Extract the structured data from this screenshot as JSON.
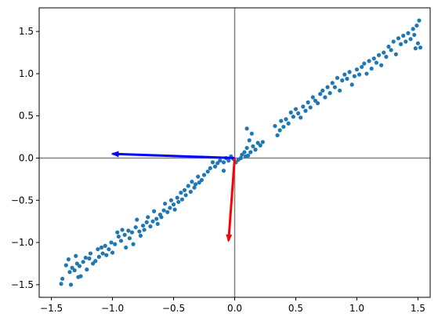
{
  "chart_data": {
    "type": "scatter",
    "title": "",
    "xlabel": "",
    "ylabel": "",
    "xlim": [
      -1.6,
      1.6
    ],
    "ylim": [
      -1.65,
      1.78
    ],
    "grid": false,
    "x_ticks": [
      -1.5,
      -1.0,
      -0.5,
      0.0,
      0.5,
      1.0,
      1.5
    ],
    "x_tick_labels": [
      "−1.5",
      "−1.0",
      "−0.5",
      "0.0",
      "0.5",
      "1.0",
      "1.5"
    ],
    "y_ticks": [
      -1.5,
      -1.0,
      -0.5,
      0.0,
      0.5,
      1.0,
      1.5
    ],
    "y_tick_labels": [
      "−1.5",
      "−1.0",
      "−0.5",
      "0.0",
      "0.5",
      "1.0",
      "1.5"
    ],
    "reference_lines": [
      {
        "orientation": "horizontal",
        "value": 0,
        "color": "#808080"
      },
      {
        "orientation": "vertical",
        "value": 0,
        "color": "#808080"
      }
    ],
    "arrows": [
      {
        "from": [
          0,
          0
        ],
        "to": [
          -1.0,
          0.05
        ],
        "color": "#0000ff"
      },
      {
        "from": [
          0,
          0
        ],
        "to": [
          -0.05,
          -0.98
        ],
        "color": "#ff0000"
      }
    ],
    "series": [
      {
        "color": "#1f77b4",
        "points": [
          [
            -1.42,
            -1.49
          ],
          [
            -1.41,
            -1.43
          ],
          [
            -1.38,
            -1.27
          ],
          [
            -1.36,
            -1.2
          ],
          [
            -1.35,
            -1.35
          ],
          [
            -1.34,
            -1.5
          ],
          [
            -1.33,
            -1.3
          ],
          [
            -1.31,
            -1.33
          ],
          [
            -1.3,
            -1.16
          ],
          [
            -1.29,
            -1.25
          ],
          [
            -1.28,
            -1.41
          ],
          [
            -1.27,
            -1.28
          ],
          [
            -1.26,
            -1.4
          ],
          [
            -1.24,
            -1.23
          ],
          [
            -1.22,
            -1.18
          ],
          [
            -1.21,
            -1.32
          ],
          [
            -1.19,
            -1.19
          ],
          [
            -1.18,
            -1.13
          ],
          [
            -1.16,
            -1.25
          ],
          [
            -1.14,
            -1.22
          ],
          [
            -1.12,
            -1.08
          ],
          [
            -1.11,
            -1.17
          ],
          [
            -1.09,
            -1.06
          ],
          [
            -1.08,
            -1.13
          ],
          [
            -1.06,
            -1.04
          ],
          [
            -1.05,
            -1.15
          ],
          [
            -1.03,
            -1.08
          ],
          [
            -1.01,
            -1.0
          ],
          [
            -1.0,
            -1.12
          ],
          [
            -0.98,
            -1.02
          ],
          [
            -0.96,
            -0.88
          ],
          [
            -0.95,
            -0.93
          ],
          [
            -0.93,
            -0.98
          ],
          [
            -0.92,
            -0.85
          ],
          [
            -0.9,
            -0.91
          ],
          [
            -0.89,
            -1.06
          ],
          [
            -0.87,
            -0.86
          ],
          [
            -0.86,
            -0.95
          ],
          [
            -0.84,
            -0.88
          ],
          [
            -0.83,
            -1.02
          ],
          [
            -0.81,
            -0.82
          ],
          [
            -0.8,
            -0.73
          ],
          [
            -0.78,
            -0.87
          ],
          [
            -0.77,
            -0.92
          ],
          [
            -0.75,
            -0.8
          ],
          [
            -0.74,
            -0.85
          ],
          [
            -0.72,
            -0.76
          ],
          [
            -0.71,
            -0.7
          ],
          [
            -0.69,
            -0.81
          ],
          [
            -0.67,
            -0.75
          ],
          [
            -0.66,
            -0.63
          ],
          [
            -0.64,
            -0.72
          ],
          [
            -0.63,
            -0.78
          ],
          [
            -0.61,
            -0.67
          ],
          [
            -0.6,
            -0.7
          ],
          [
            -0.58,
            -0.62
          ],
          [
            -0.57,
            -0.54
          ],
          [
            -0.55,
            -0.64
          ],
          [
            -0.53,
            -0.59
          ],
          [
            -0.52,
            -0.5
          ],
          [
            -0.5,
            -0.55
          ],
          [
            -0.49,
            -0.61
          ],
          [
            -0.47,
            -0.47
          ],
          [
            -0.46,
            -0.52
          ],
          [
            -0.44,
            -0.41
          ],
          [
            -0.43,
            -0.49
          ],
          [
            -0.41,
            -0.38
          ],
          [
            -0.4,
            -0.44
          ],
          [
            -0.38,
            -0.33
          ],
          [
            -0.36,
            -0.4
          ],
          [
            -0.35,
            -0.28
          ],
          [
            -0.33,
            -0.35
          ],
          [
            -0.32,
            -0.31
          ],
          [
            -0.3,
            -0.22
          ],
          [
            -0.29,
            -0.29
          ],
          [
            -0.27,
            -0.26
          ],
          [
            -0.25,
            -0.2
          ],
          [
            -0.22,
            -0.16
          ],
          [
            -0.2,
            -0.12
          ],
          [
            -0.18,
            -0.05
          ],
          [
            -0.16,
            -0.1
          ],
          [
            -0.14,
            -0.06
          ],
          [
            -0.12,
            -0.03
          ],
          [
            -0.09,
            -0.05
          ],
          [
            -0.07,
            0.0
          ],
          [
            -0.05,
            -0.03
          ],
          [
            -0.03,
            0.02
          ],
          [
            -0.01,
            -0.01
          ],
          [
            0.01,
            -0.05
          ],
          [
            0.03,
            -0.02
          ],
          [
            0.05,
            0.0
          ],
          [
            0.06,
            0.04
          ],
          [
            0.08,
            0.07
          ],
          [
            0.09,
            0.02
          ],
          [
            0.1,
            0.12
          ],
          [
            0.1,
            0.35
          ],
          [
            0.11,
            0.03
          ],
          [
            0.12,
            0.21
          ],
          [
            0.13,
            0.07
          ],
          [
            0.14,
            0.29
          ],
          [
            0.15,
            0.14
          ],
          [
            0.17,
            0.1
          ],
          [
            0.19,
            0.18
          ],
          [
            0.21,
            0.15
          ],
          [
            0.23,
            0.19
          ],
          [
            0.33,
            0.38
          ],
          [
            0.35,
            0.27
          ],
          [
            0.37,
            0.33
          ],
          [
            0.38,
            0.44
          ],
          [
            0.4,
            0.37
          ],
          [
            0.42,
            0.46
          ],
          [
            0.44,
            0.41
          ],
          [
            0.46,
            0.54
          ],
          [
            0.48,
            0.49
          ],
          [
            0.5,
            0.58
          ],
          [
            0.52,
            0.53
          ],
          [
            0.54,
            0.48
          ],
          [
            0.56,
            0.61
          ],
          [
            0.58,
            0.56
          ],
          [
            0.6,
            0.66
          ],
          [
            0.62,
            0.6
          ],
          [
            0.64,
            0.72
          ],
          [
            0.66,
            0.68
          ],
          [
            0.68,
            0.65
          ],
          [
            0.7,
            0.76
          ],
          [
            0.72,
            0.8
          ],
          [
            0.74,
            0.72
          ],
          [
            0.76,
            0.84
          ],
          [
            0.78,
            0.77
          ],
          [
            0.8,
            0.89
          ],
          [
            0.82,
            0.84
          ],
          [
            0.84,
            0.95
          ],
          [
            0.86,
            0.8
          ],
          [
            0.88,
            0.92
          ],
          [
            0.9,
            0.99
          ],
          [
            0.92,
            0.94
          ],
          [
            0.94,
            1.02
          ],
          [
            0.96,
            0.87
          ],
          [
            0.98,
            0.97
          ],
          [
            1.0,
            1.05
          ],
          [
            1.02,
            0.99
          ],
          [
            1.04,
            1.08
          ],
          [
            1.06,
            1.12
          ],
          [
            1.08,
            1.0
          ],
          [
            1.1,
            1.15
          ],
          [
            1.12,
            1.06
          ],
          [
            1.14,
            1.18
          ],
          [
            1.16,
            1.13
          ],
          [
            1.18,
            1.22
          ],
          [
            1.2,
            1.1
          ],
          [
            1.22,
            1.25
          ],
          [
            1.24,
            1.2
          ],
          [
            1.26,
            1.32
          ],
          [
            1.28,
            1.28
          ],
          [
            1.3,
            1.38
          ],
          [
            1.32,
            1.23
          ],
          [
            1.34,
            1.42
          ],
          [
            1.36,
            1.35
          ],
          [
            1.38,
            1.45
          ],
          [
            1.4,
            1.38
          ],
          [
            1.42,
            1.48
          ],
          [
            1.44,
            1.41
          ],
          [
            1.46,
            1.53
          ],
          [
            1.47,
            1.46
          ],
          [
            1.48,
            1.3
          ],
          [
            1.49,
            1.57
          ],
          [
            1.5,
            1.36
          ],
          [
            1.51,
            1.63
          ],
          [
            1.52,
            1.31
          ],
          [
            -0.09,
            -0.15
          ]
        ]
      }
    ]
  }
}
